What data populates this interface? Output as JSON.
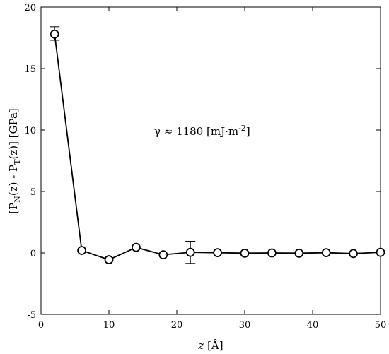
{
  "chart_data": {
    "type": "line",
    "title": "",
    "xlabel": "z [Å]",
    "ylabel": "[PN(z) - PT(z)] [GPa]",
    "xlim": [
      0,
      50
    ],
    "ylim": [
      -5,
      20
    ],
    "x_ticks": [
      0,
      10,
      20,
      30,
      40,
      50
    ],
    "y_ticks": [
      -5,
      0,
      5,
      10,
      15,
      20
    ],
    "x_tick_labels": [
      "0",
      "10",
      "20",
      "30",
      "40",
      "50"
    ],
    "y_tick_labels": [
      "-5",
      "0",
      "5",
      "10",
      "15",
      "20"
    ],
    "grid": false,
    "annotation": "γ ≈ 1180 [mJ·m-2]",
    "series": [
      {
        "x": [
          2,
          6,
          10,
          14,
          18,
          22,
          26,
          30,
          34,
          38,
          42,
          46,
          50
        ],
        "y": [
          17.8,
          0.2,
          -0.55,
          0.45,
          -0.15,
          0.05,
          0.02,
          -0.02,
          0.0,
          -0.02,
          0.02,
          -0.05,
          0.05
        ],
        "errors": [
          {
            "x": 2,
            "low": 17.3,
            "high": 18.4
          },
          {
            "x": 22,
            "low": -0.85,
            "high": 0.95
          }
        ],
        "color": "#000000",
        "marker": "open-circle"
      }
    ]
  }
}
